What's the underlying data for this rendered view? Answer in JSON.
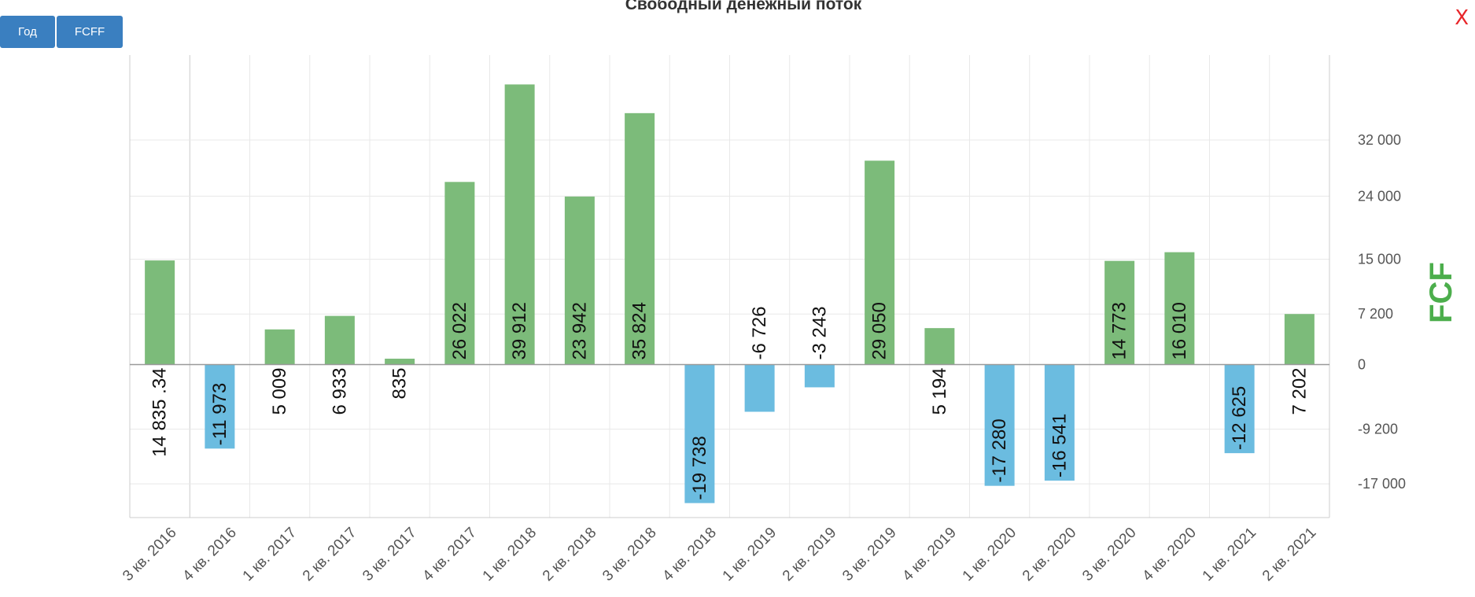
{
  "toolbar": {
    "year_label": "Год",
    "fcff_label": "FCFF"
  },
  "close_label": "X",
  "chart_data": {
    "type": "bar",
    "title": "Свободный денежный поток",
    "xlabel": "",
    "ylabel": "FCF",
    "grid": true,
    "legend": "none",
    "colors": {
      "positive": "#7cbb7a",
      "negative": "#6bbce0",
      "axis_title": "#4cae4c"
    },
    "ylim": [
      -21800,
      44100
    ],
    "y_ticks": [
      {
        "value": -17000,
        "label": "-17 000"
      },
      {
        "value": -9200,
        "label": "-9 200"
      },
      {
        "value": 0,
        "label": "0"
      },
      {
        "value": 7200,
        "label": "7 200"
      },
      {
        "value": 15000,
        "label": "15 000"
      },
      {
        "value": 24000,
        "label": "24 000"
      },
      {
        "value": 32000,
        "label": "32 000"
      }
    ],
    "categories": [
      "3 кв. 2016",
      "4 кв. 2016",
      "1 кв. 2017",
      "2 кв. 2017",
      "3 кв. 2017",
      "4 кв. 2017",
      "1 кв. 2018",
      "2 кв. 2018",
      "3 кв. 2018",
      "4 кв. 2018",
      "1 кв. 2019",
      "2 кв. 2019",
      "3 кв. 2019",
      "4 кв. 2019",
      "1 кв. 2020",
      "2 кв. 2020",
      "3 кв. 2020",
      "4 кв. 2020",
      "1 кв. 2021",
      "2 кв. 2021"
    ],
    "values": [
      14835.34,
      -11973,
      5009,
      6933,
      835,
      26022,
      39912,
      23942,
      35824,
      -19738,
      -6726,
      -3243,
      29050,
      5194,
      -17280,
      -16541,
      14773,
      16010,
      -12625,
      7202
    ],
    "value_labels": [
      "14 835 .34",
      "-11 973",
      "5 009",
      "6 933",
      "835",
      "26 022",
      "39 912",
      "23 942",
      "35 824",
      "-19 738",
      "-6 726",
      "-3 243",
      "29 050",
      "5 194",
      "-17 280",
      "-16 541",
      "14 773",
      "16 010",
      "-12 625",
      "7 202"
    ]
  }
}
